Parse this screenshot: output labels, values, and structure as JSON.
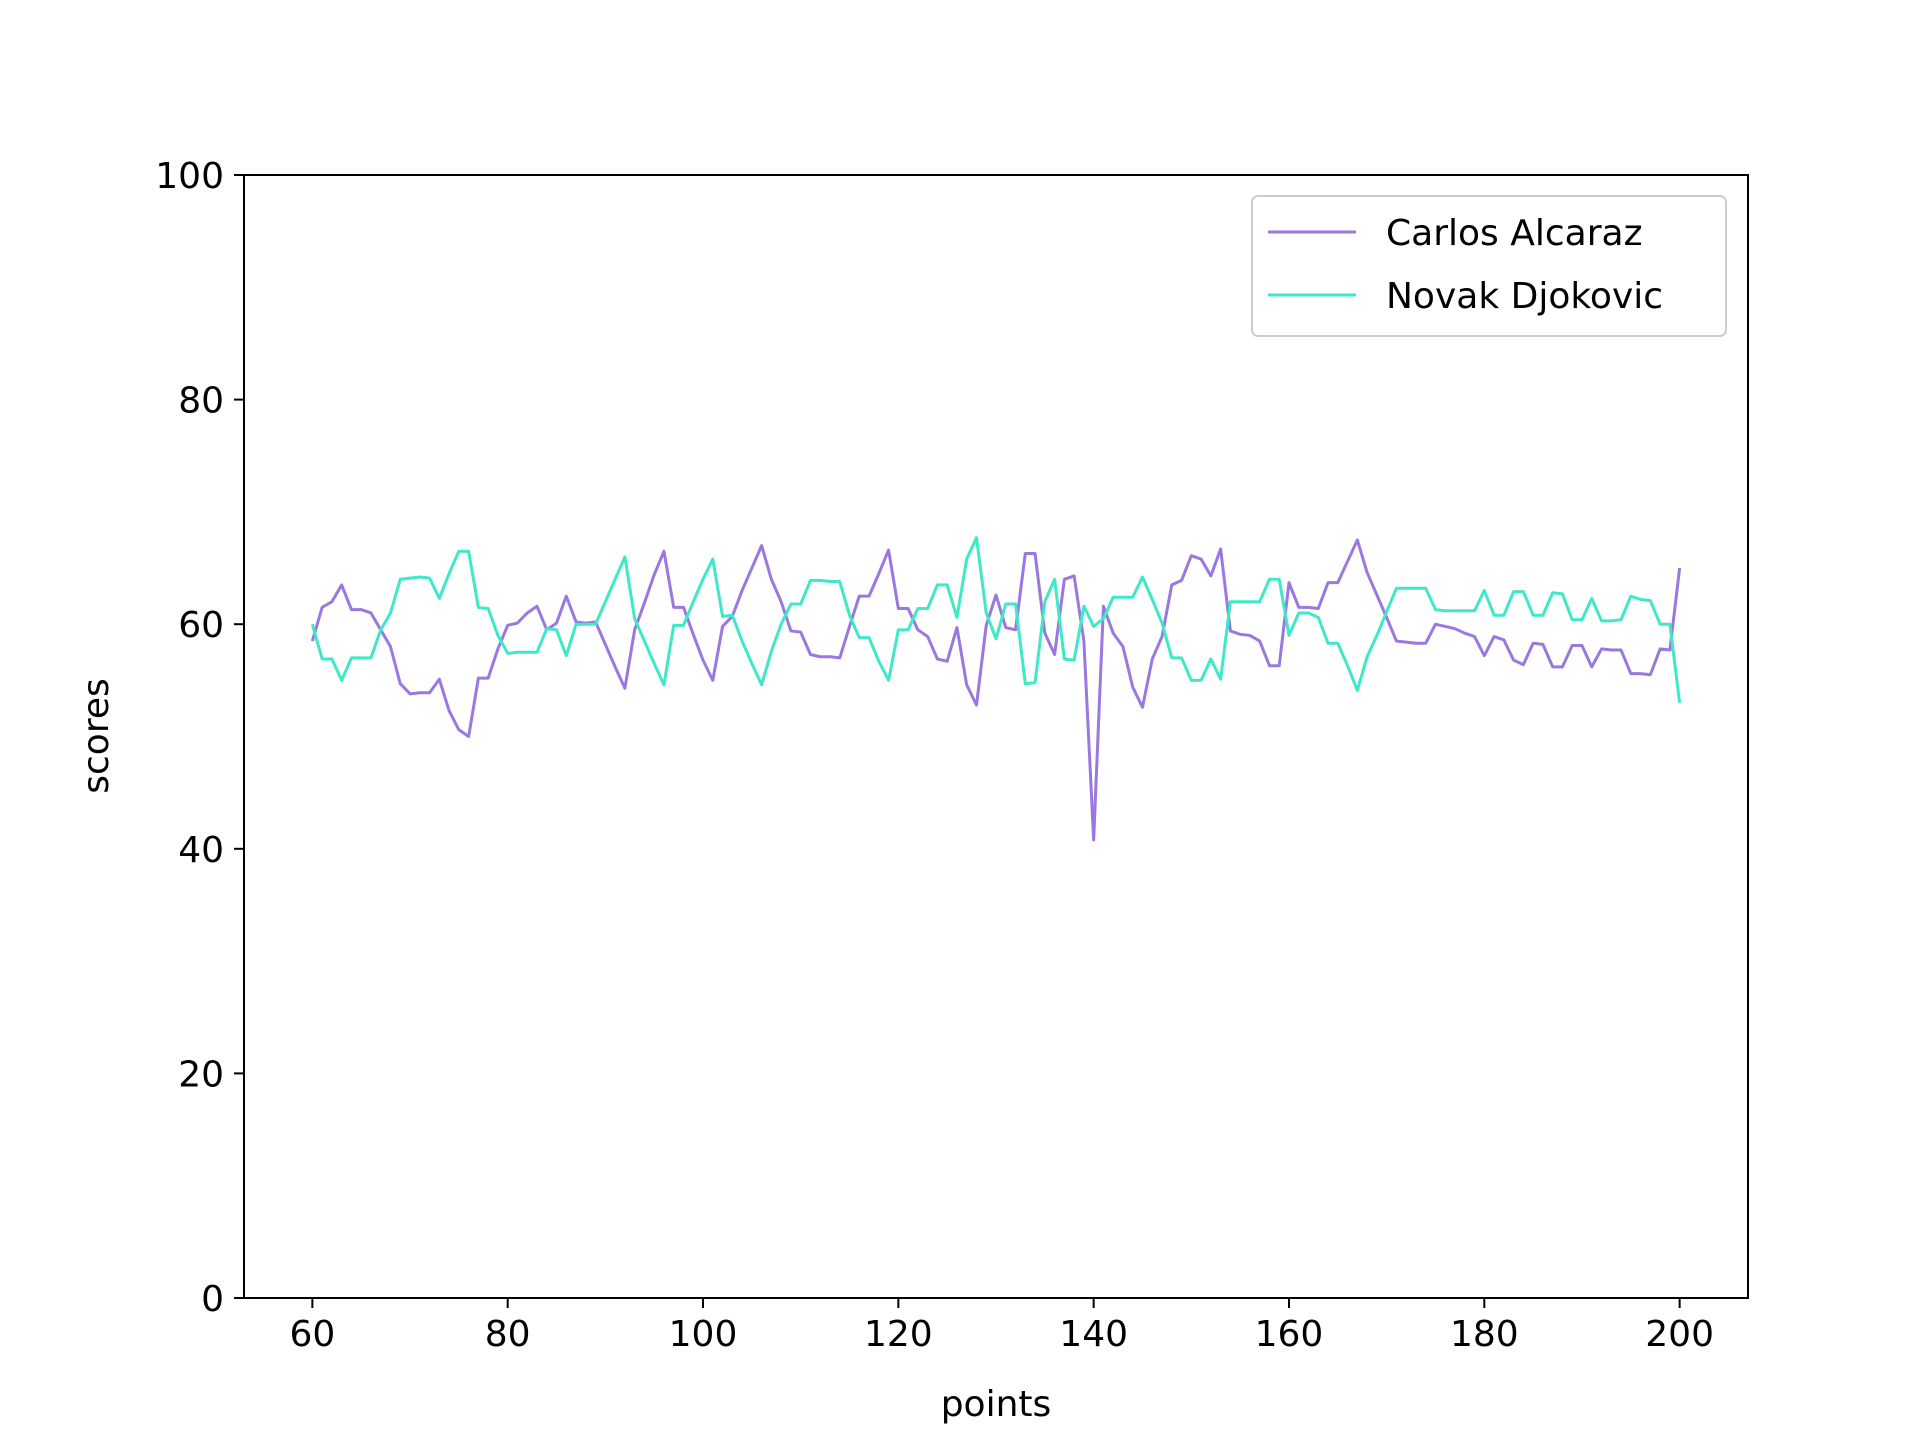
{
  "chart_data": {
    "type": "line",
    "title": "",
    "xlabel": "points",
    "ylabel": "scores",
    "xlim": [
      53,
      207
    ],
    "ylim": [
      0,
      100
    ],
    "xticks": [
      60,
      80,
      100,
      120,
      140,
      160,
      180,
      200
    ],
    "yticks": [
      0,
      20,
      40,
      60,
      80,
      100
    ],
    "grid": false,
    "legend_position": "top-right",
    "x": [
      60,
      61,
      62,
      63,
      64,
      65,
      66,
      67,
      68,
      69,
      70,
      71,
      72,
      73,
      74,
      75,
      76,
      77,
      78,
      79,
      80,
      81,
      82,
      83,
      84,
      85,
      86,
      87,
      88,
      89,
      90,
      91,
      92,
      93,
      94,
      95,
      96,
      97,
      98,
      99,
      100,
      101,
      102,
      103,
      104,
      105,
      106,
      107,
      108,
      109,
      110,
      111,
      112,
      113,
      114,
      115,
      116,
      117,
      118,
      119,
      120,
      121,
      122,
      123,
      124,
      125,
      126,
      127,
      128,
      129,
      130,
      131,
      132,
      133,
      134,
      135,
      136,
      137,
      138,
      139,
      140,
      141,
      142,
      143,
      144,
      145,
      146,
      147,
      148,
      149,
      150,
      151,
      152,
      153,
      154,
      155,
      156,
      157,
      158,
      159,
      160,
      161,
      162,
      163,
      164,
      165,
      166,
      167,
      168,
      169,
      170,
      171,
      172,
      173,
      174,
      175,
      176,
      177,
      178,
      179,
      180,
      181,
      182,
      183,
      184,
      185,
      186,
      187,
      188,
      189,
      190,
      191,
      192,
      193,
      194,
      195,
      196,
      197,
      198,
      199,
      200
    ],
    "series": [
      {
        "name": "Carlos Alcaraz",
        "color": "#9b77e0",
        "values": [
          58.5,
          61.5,
          62.0,
          63.5,
          61.3,
          61.3,
          61.0,
          59.5,
          58.0,
          54.7,
          53.8,
          53.9,
          53.9,
          55.1,
          52.3,
          50.6,
          50.0,
          55.2,
          55.2,
          57.8,
          59.9,
          60.1,
          61.0,
          61.6,
          59.5,
          60.1,
          62.5,
          60.2,
          60.1,
          60.2,
          58.2,
          56.2,
          54.3,
          59.5,
          61.9,
          64.4,
          66.5,
          61.5,
          61.5,
          59.1,
          56.8,
          55.0,
          59.8,
          60.7,
          63.0,
          65.0,
          67.0,
          64.0,
          62.0,
          59.4,
          59.3,
          57.3,
          57.1,
          57.1,
          57.0,
          59.8,
          62.5,
          62.5,
          64.5,
          66.6,
          61.4,
          61.4,
          59.5,
          58.9,
          56.9,
          56.7,
          59.7,
          54.6,
          52.8,
          59.9,
          62.6,
          59.7,
          59.5,
          66.3,
          66.3,
          59.2,
          57.3,
          64.0,
          64.3,
          58.5,
          40.8,
          61.6,
          59.2,
          58.0,
          54.4,
          52.6,
          56.9,
          58.9,
          63.5,
          63.9,
          66.1,
          65.8,
          64.3,
          66.7,
          59.4,
          59.1,
          59.0,
          58.5,
          56.3,
          56.3,
          63.7,
          61.5,
          61.5,
          61.4,
          63.7,
          63.7,
          65.6,
          67.5,
          64.6,
          62.6,
          60.6,
          58.5,
          58.4,
          58.3,
          58.3,
          60.0,
          59.8,
          59.6,
          59.2,
          58.9,
          57.2,
          58.9,
          58.6,
          56.8,
          56.4,
          58.3,
          58.2,
          56.2,
          56.2,
          58.1,
          58.1,
          56.2,
          57.8,
          57.7,
          57.7,
          55.6,
          55.6,
          55.5,
          57.8,
          57.7,
          65.0
        ]
      },
      {
        "name": "Novak Djokovic",
        "color": "#3ee8c8",
        "values": [
          60.0,
          56.9,
          56.9,
          55.0,
          57.0,
          57.0,
          57.0,
          59.5,
          61.0,
          64.0,
          64.1,
          64.2,
          64.1,
          62.3,
          64.5,
          66.5,
          66.5,
          61.5,
          61.4,
          59.0,
          57.4,
          57.5,
          57.5,
          57.5,
          59.6,
          59.5,
          57.2,
          60.0,
          60.0,
          60.0,
          62.0,
          64.0,
          66.0,
          60.5,
          58.5,
          56.5,
          54.6,
          59.9,
          59.9,
          62.0,
          64.0,
          65.8,
          60.7,
          60.8,
          58.5,
          56.5,
          54.6,
          57.6,
          60.0,
          61.8,
          61.8,
          63.9,
          63.9,
          63.8,
          63.8,
          60.8,
          58.8,
          58.8,
          56.7,
          55.0,
          59.5,
          59.5,
          61.4,
          61.4,
          63.5,
          63.5,
          60.6,
          65.8,
          67.7,
          61.0,
          58.7,
          61.8,
          61.8,
          54.7,
          54.8,
          62.0,
          64.0,
          56.9,
          56.8,
          61.6,
          59.8,
          60.5,
          62.4,
          62.4,
          62.4,
          64.2,
          62.2,
          60.1,
          57.0,
          57.0,
          55.0,
          55.0,
          56.9,
          55.1,
          62.0,
          62.0,
          62.0,
          62.0,
          64.0,
          64.0,
          59.0,
          61.0,
          61.0,
          60.6,
          58.3,
          58.3,
          56.3,
          54.1,
          57.1,
          59.0,
          61.1,
          63.2,
          63.2,
          63.2,
          63.2,
          61.3,
          61.2,
          61.2,
          61.2,
          61.2,
          63.0,
          60.8,
          60.8,
          62.9,
          62.9,
          60.8,
          60.8,
          62.8,
          62.7,
          60.4,
          60.4,
          62.3,
          60.3,
          60.3,
          60.4,
          62.5,
          62.2,
          62.1,
          60.0,
          60.0,
          53.0
        ]
      }
    ]
  }
}
